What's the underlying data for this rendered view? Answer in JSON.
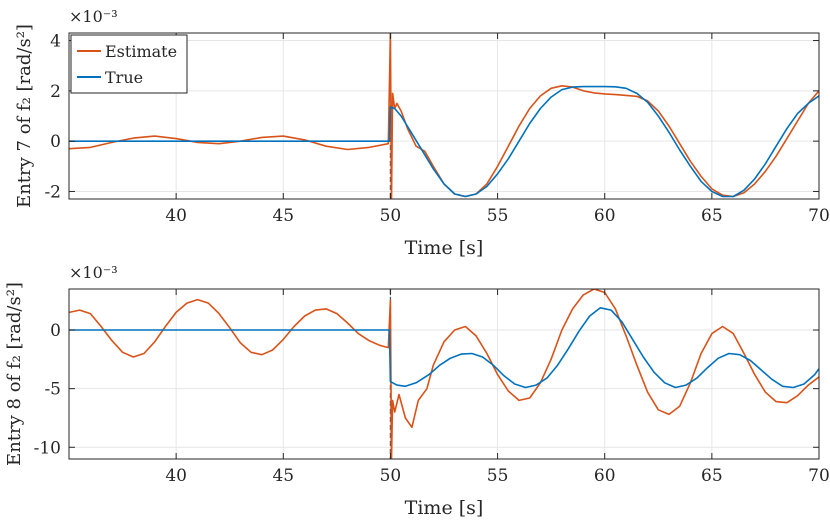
{
  "chart_data": [
    {
      "type": "line",
      "ylabel": "Entry 7 of f₂ [rad/s²]",
      "xlabel": "Time [s]",
      "exponent": "×10⁻³",
      "xlim": [
        35,
        70
      ],
      "ylim": [
        -2.3,
        4.3
      ],
      "xticks": [
        40,
        45,
        50,
        55,
        60,
        65,
        70
      ],
      "yticks": [
        -2,
        0,
        2,
        4
      ],
      "xtick_labels": [
        "40",
        "45",
        "50",
        "55",
        "60",
        "65",
        "70"
      ],
      "ytick_labels": [
        "-2",
        "0",
        "2",
        "4"
      ],
      "legend": {
        "position": "top-left",
        "entries": [
          "Estimate",
          "True"
        ]
      },
      "event_line_x": 50,
      "series": [
        {
          "name": "Estimate",
          "color": "#D95319",
          "x": [
            35,
            36,
            37,
            38,
            39,
            40,
            41,
            42,
            43,
            44,
            45,
            46,
            47,
            48,
            49,
            49.9,
            50.0,
            50.05,
            50.1,
            50.2,
            50.3,
            50.5,
            50.8,
            51.2,
            51.6,
            52.0,
            52.5,
            53.0,
            53.5,
            54.0,
            54.5,
            55.0,
            55.5,
            56.0,
            56.5,
            57.0,
            57.5,
            58.0,
            58.5,
            59.0,
            59.5,
            60.0,
            60.5,
            61.0,
            61.5,
            62.0,
            62.5,
            63.0,
            63.5,
            64.0,
            64.5,
            65.0,
            65.5,
            66.0,
            66.5,
            67.0,
            67.5,
            68.0,
            68.5,
            69.0,
            69.5,
            70.0
          ],
          "y": [
            -0.3,
            -0.25,
            -0.05,
            0.12,
            0.2,
            0.1,
            -0.05,
            -0.1,
            0.0,
            0.15,
            0.2,
            0.05,
            -0.2,
            -0.33,
            -0.25,
            -0.1,
            4.3,
            -2.3,
            1.9,
            1.3,
            1.5,
            1.2,
            0.5,
            -0.2,
            -0.4,
            -1.0,
            -1.7,
            -2.1,
            -2.2,
            -2.1,
            -1.7,
            -1.0,
            -0.2,
            0.6,
            1.3,
            1.8,
            2.1,
            2.2,
            2.15,
            2.0,
            1.92,
            1.88,
            1.85,
            1.82,
            1.78,
            1.6,
            1.2,
            0.6,
            -0.1,
            -0.8,
            -1.4,
            -1.9,
            -2.15,
            -2.2,
            -2.05,
            -1.7,
            -1.2,
            -0.6,
            0.1,
            0.8,
            1.5,
            2.0
          ]
        },
        {
          "name": "True",
          "color": "#0072BD",
          "x": [
            35,
            36,
            37,
            38,
            39,
            40,
            41,
            42,
            43,
            44,
            45,
            46,
            47,
            48,
            49,
            49.95,
            50.0,
            50.2,
            50.5,
            51.0,
            51.5,
            52.0,
            52.5,
            53.0,
            53.5,
            54.0,
            54.5,
            55.0,
            55.5,
            56.0,
            56.5,
            57.0,
            57.5,
            58.0,
            58.5,
            59.0,
            59.5,
            60.0,
            60.5,
            61.0,
            61.5,
            62.0,
            62.5,
            63.0,
            63.5,
            64.0,
            64.5,
            65.0,
            65.5,
            66.0,
            66.5,
            67.0,
            67.5,
            68.0,
            68.5,
            69.0,
            69.5,
            70.0
          ],
          "y": [
            0,
            0,
            0,
            0,
            0,
            0,
            0,
            0,
            0,
            0,
            0,
            0,
            0,
            0,
            0,
            0,
            1.35,
            1.3,
            1.0,
            0.3,
            -0.4,
            -1.1,
            -1.7,
            -2.1,
            -2.2,
            -2.1,
            -1.8,
            -1.3,
            -0.7,
            0.0,
            0.7,
            1.3,
            1.75,
            2.05,
            2.15,
            2.17,
            2.17,
            2.17,
            2.16,
            2.1,
            1.9,
            1.55,
            1.0,
            0.35,
            -0.35,
            -1.0,
            -1.6,
            -2.0,
            -2.2,
            -2.2,
            -1.95,
            -1.5,
            -0.9,
            -0.2,
            0.5,
            1.1,
            1.5,
            1.8
          ]
        }
      ]
    },
    {
      "type": "line",
      "ylabel": "Entry 8 of f₂ [rad/s²]",
      "xlabel": "Time [s]",
      "exponent": "×10⁻³",
      "xlim": [
        35,
        70
      ],
      "ylim": [
        -11,
        3.5
      ],
      "xticks": [
        40,
        45,
        50,
        55,
        60,
        65,
        70
      ],
      "yticks": [
        -10,
        -5,
        0
      ],
      "xtick_labels": [
        "40",
        "45",
        "50",
        "55",
        "60",
        "65",
        "70"
      ],
      "ytick_labels": [
        "-10",
        "-5",
        "0"
      ],
      "event_line_x": 50,
      "series": [
        {
          "name": "Estimate",
          "color": "#D95319",
          "x": [
            35,
            35.5,
            36,
            36.5,
            37,
            37.5,
            38,
            38.5,
            39,
            39.5,
            40,
            40.5,
            41,
            41.5,
            42,
            42.5,
            43,
            43.5,
            44,
            44.5,
            45,
            45.5,
            46,
            46.5,
            47,
            47.5,
            48,
            48.5,
            49,
            49.5,
            49.9,
            50.0,
            50.05,
            50.1,
            50.2,
            50.4,
            50.7,
            51.0,
            51.3,
            51.7,
            52.0,
            52.5,
            53.0,
            53.5,
            54.0,
            54.5,
            55.0,
            55.5,
            56.0,
            56.5,
            57.0,
            57.5,
            58.0,
            58.5,
            59.0,
            59.5,
            60.0,
            60.5,
            61.0,
            61.5,
            62.0,
            62.5,
            63.0,
            63.5,
            64.0,
            64.5,
            65.0,
            65.5,
            66.0,
            66.5,
            67.0,
            67.5,
            68.0,
            68.5,
            69.0,
            69.5,
            70.0
          ],
          "y": [
            1.5,
            1.7,
            1.4,
            0.3,
            -0.9,
            -1.9,
            -2.3,
            -2.0,
            -1.0,
            0.3,
            1.5,
            2.3,
            2.6,
            2.3,
            1.4,
            0.2,
            -1.1,
            -1.9,
            -2.1,
            -1.7,
            -0.8,
            0.3,
            1.2,
            1.7,
            1.8,
            1.4,
            0.6,
            -0.3,
            -0.9,
            -1.3,
            -1.5,
            2.5,
            -11.0,
            -6.0,
            -7.0,
            -5.5,
            -7.5,
            -8.3,
            -6.0,
            -5.0,
            -3.0,
            -1.0,
            0.0,
            0.3,
            -0.5,
            -2.0,
            -3.8,
            -5.2,
            -6.0,
            -5.8,
            -4.5,
            -2.5,
            0.0,
            1.8,
            3.0,
            3.5,
            3.2,
            1.8,
            -0.5,
            -3.0,
            -5.3,
            -6.8,
            -7.2,
            -6.5,
            -4.5,
            -2.0,
            -0.3,
            0.3,
            -0.3,
            -2.0,
            -3.8,
            -5.3,
            -6.1,
            -6.2,
            -5.6,
            -4.7,
            -4.0
          ]
        },
        {
          "name": "True",
          "color": "#0072BD",
          "x": [
            35,
            36,
            37,
            38,
            39,
            40,
            41,
            42,
            43,
            44,
            45,
            46,
            47,
            48,
            49,
            49.95,
            50.0,
            50.3,
            50.7,
            51.2,
            51.8,
            52.3,
            52.8,
            53.3,
            53.8,
            54.3,
            54.8,
            55.3,
            55.8,
            56.3,
            56.8,
            57.3,
            57.8,
            58.3,
            58.8,
            59.3,
            59.8,
            60.3,
            60.8,
            61.3,
            61.8,
            62.3,
            62.8,
            63.3,
            63.8,
            64.3,
            64.8,
            65.3,
            65.8,
            66.3,
            66.8,
            67.3,
            67.8,
            68.3,
            68.8,
            69.3,
            69.8,
            70.0
          ],
          "y": [
            0,
            0,
            0,
            0,
            0,
            0,
            0,
            0,
            0,
            0,
            0,
            0,
            0,
            0,
            0,
            0,
            -4.4,
            -4.7,
            -4.8,
            -4.5,
            -3.8,
            -3.0,
            -2.4,
            -2.05,
            -2.0,
            -2.3,
            -3.0,
            -3.9,
            -4.6,
            -4.9,
            -4.7,
            -4.1,
            -3.0,
            -1.6,
            -0.1,
            1.2,
            1.9,
            1.7,
            0.7,
            -0.8,
            -2.3,
            -3.6,
            -4.5,
            -4.9,
            -4.7,
            -4.1,
            -3.2,
            -2.4,
            -2.0,
            -2.1,
            -2.6,
            -3.4,
            -4.2,
            -4.8,
            -4.9,
            -4.6,
            -3.8,
            -3.3
          ]
        }
      ]
    }
  ]
}
